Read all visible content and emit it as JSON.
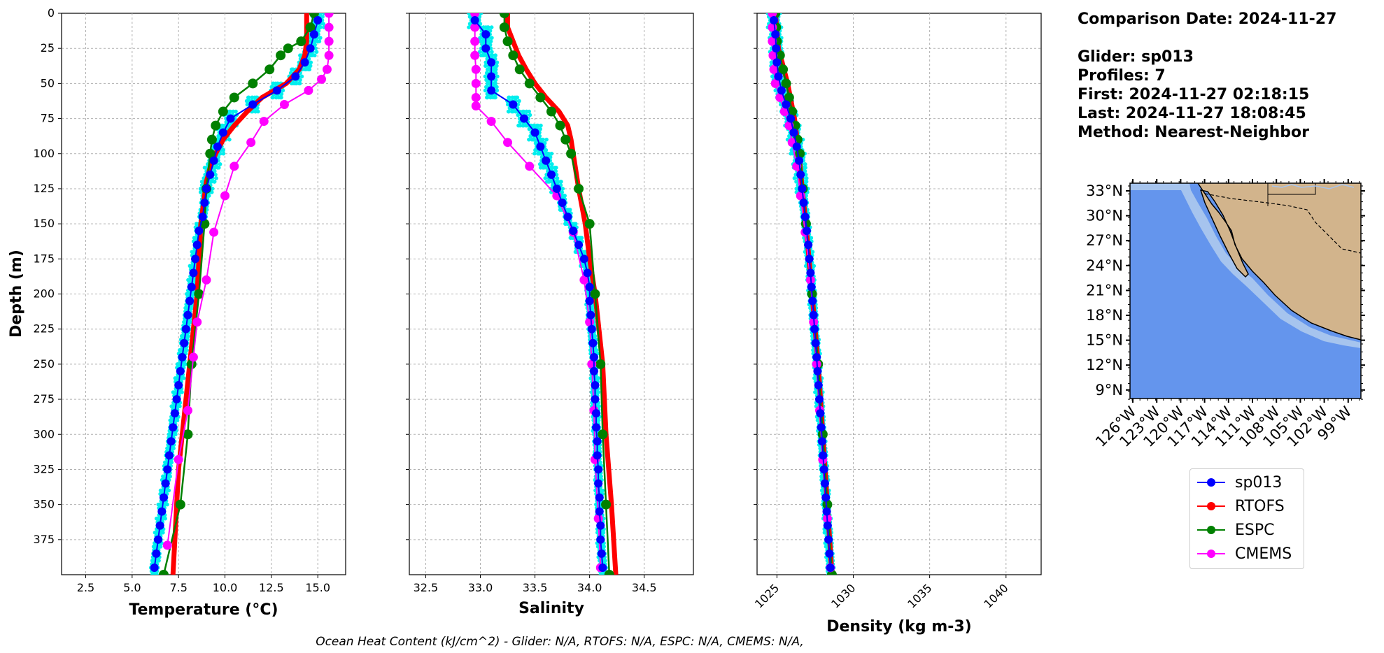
{
  "info": {
    "comparison_date": "Comparison Date: 2024-11-27",
    "glider": "Glider: sp013",
    "profiles": "Profiles: 7",
    "first": "First: 2024-11-27 02:18:15",
    "last": "Last: 2024-11-27 18:08:45",
    "method": "Method: Nearest-Neighbor"
  },
  "footer": "Ocean Heat Content (kJ/cm^2) - Glider: N/A,  RTOFS: N/A,  ESPC: N/A,  CMEMS: N/A,",
  "colors": {
    "sp013": "#0000ff",
    "RTOFS": "#ff0000",
    "ESPC": "#008000",
    "CMEMS": "#ff00ff",
    "raw": "#00eeee",
    "land": "#d2b48c",
    "ocean": "#6495ed",
    "shelf": "#a6c4ee"
  },
  "legend": [
    {
      "label": "sp013",
      "color": "#0000ff"
    },
    {
      "label": "RTOFS",
      "color": "#ff0000"
    },
    {
      "label": "ESPC",
      "color": "#008000"
    },
    {
      "label": "CMEMS",
      "color": "#ff00ff"
    }
  ],
  "chart_data": [
    {
      "type": "line",
      "xlabel": "Temperature (°C)",
      "ylabel": "Depth (m)",
      "xlim": [
        1.2,
        16.5
      ],
      "ylim": [
        400,
        0
      ],
      "xticks": [
        "2.5",
        "5.0",
        "7.5",
        "10.0",
        "12.5",
        "15.0"
      ],
      "yticks": [
        "0",
        "25",
        "50",
        "75",
        "100",
        "125",
        "150",
        "175",
        "200",
        "225",
        "250",
        "275",
        "300",
        "325",
        "350",
        "375"
      ],
      "grid": true,
      "series": [
        {
          "name": "sp013",
          "depth": [
            5,
            15,
            25,
            35,
            45,
            55,
            65,
            75,
            85,
            95,
            105,
            115,
            125,
            135,
            145,
            155,
            165,
            175,
            185,
            195,
            205,
            215,
            225,
            235,
            245,
            255,
            265,
            275,
            285,
            295,
            305,
            315,
            325,
            335,
            345,
            355,
            365,
            375,
            385,
            395
          ],
          "values": [
            15.0,
            14.8,
            14.6,
            14.3,
            13.8,
            12.8,
            11.5,
            10.3,
            9.9,
            9.6,
            9.4,
            9.2,
            9.0,
            8.9,
            8.8,
            8.6,
            8.5,
            8.4,
            8.3,
            8.2,
            8.1,
            8.0,
            7.9,
            7.8,
            7.7,
            7.6,
            7.5,
            7.4,
            7.3,
            7.2,
            7.1,
            7.0,
            6.9,
            6.8,
            6.7,
            6.6,
            6.5,
            6.4,
            6.3,
            6.2
          ]
        },
        {
          "name": "RTOFS",
          "depth": [
            0,
            10,
            20,
            30,
            40,
            50,
            60,
            70,
            80,
            90,
            100,
            110,
            120,
            130,
            140,
            150,
            175,
            200,
            225,
            250,
            275,
            300,
            325,
            350,
            375,
            400
          ],
          "values": [
            14.4,
            14.4,
            14.4,
            14.3,
            14.0,
            13.3,
            12.0,
            11.2,
            10.5,
            9.9,
            9.5,
            9.2,
            9.0,
            8.9,
            8.8,
            8.7,
            8.6,
            8.5,
            8.3,
            8.1,
            7.9,
            7.7,
            7.5,
            7.4,
            7.3,
            7.2
          ]
        },
        {
          "name": "ESPC",
          "depth": [
            0,
            10,
            20,
            25,
            30,
            40,
            50,
            60,
            70,
            80,
            90,
            100,
            125,
            150,
            200,
            250,
            300,
            350,
            400
          ],
          "values": [
            14.8,
            14.6,
            14.1,
            13.4,
            13.0,
            12.4,
            11.5,
            10.5,
            9.9,
            9.5,
            9.3,
            9.2,
            9.0,
            8.9,
            8.6,
            8.2,
            8.0,
            7.6,
            6.7
          ]
        },
        {
          "name": "CMEMS",
          "depth": [
            0,
            10,
            20,
            30,
            40,
            47,
            55,
            65,
            77,
            92,
            109,
            130,
            156,
            190,
            220,
            245,
            283,
            318,
            379
          ],
          "values": [
            15.6,
            15.6,
            15.6,
            15.6,
            15.5,
            15.2,
            14.5,
            13.2,
            12.1,
            11.4,
            10.5,
            10.0,
            9.4,
            9.0,
            8.5,
            8.3,
            8.0,
            7.5,
            6.9
          ]
        }
      ]
    },
    {
      "type": "line",
      "xlabel": "Salinity",
      "xlim": [
        32.35,
        34.95
      ],
      "ylim": [
        400,
        0
      ],
      "xticks": [
        "32.5",
        "33.0",
        "33.5",
        "34.0",
        "34.5"
      ],
      "grid": true,
      "series": [
        {
          "name": "sp013",
          "depth": [
            5,
            15,
            25,
            35,
            45,
            55,
            65,
            75,
            85,
            95,
            105,
            115,
            125,
            135,
            145,
            155,
            165,
            175,
            185,
            195,
            205,
            215,
            225,
            235,
            245,
            255,
            265,
            275,
            285,
            295,
            305,
            315,
            325,
            335,
            345,
            355,
            365,
            375,
            385,
            395
          ],
          "values": [
            32.95,
            33.05,
            33.05,
            33.1,
            33.1,
            33.1,
            33.3,
            33.4,
            33.5,
            33.55,
            33.6,
            33.65,
            33.7,
            33.75,
            33.8,
            33.85,
            33.9,
            33.95,
            33.98,
            34.0,
            34.0,
            34.01,
            34.02,
            34.03,
            34.04,
            34.04,
            34.05,
            34.05,
            34.06,
            34.06,
            34.07,
            34.07,
            34.08,
            34.08,
            34.09,
            34.09,
            34.1,
            34.1,
            34.11,
            34.12
          ]
        },
        {
          "name": "RTOFS",
          "depth": [
            0,
            10,
            20,
            30,
            40,
            50,
            60,
            70,
            80,
            90,
            100,
            125,
            150,
            175,
            200,
            250,
            300,
            350,
            400
          ],
          "values": [
            33.25,
            33.25,
            33.3,
            33.35,
            33.42,
            33.5,
            33.6,
            33.72,
            33.8,
            33.83,
            33.85,
            33.9,
            33.96,
            34.0,
            34.05,
            34.12,
            34.15,
            34.2,
            34.24
          ]
        },
        {
          "name": "ESPC",
          "depth": [
            0,
            10,
            20,
            30,
            40,
            50,
            60,
            70,
            80,
            90,
            100,
            125,
            150,
            200,
            250,
            300,
            350,
            400
          ],
          "values": [
            33.22,
            33.22,
            33.25,
            33.3,
            33.36,
            33.45,
            33.55,
            33.65,
            33.73,
            33.78,
            33.83,
            33.9,
            34.0,
            34.05,
            34.1,
            34.12,
            34.15,
            34.18
          ]
        },
        {
          "name": "CMEMS",
          "depth": [
            0,
            10,
            20,
            30,
            40,
            50,
            60,
            66,
            77,
            92,
            109,
            130,
            156,
            190,
            220,
            250,
            283,
            318,
            360,
            395
          ],
          "values": [
            32.95,
            32.95,
            32.95,
            32.95,
            32.96,
            32.96,
            32.96,
            32.96,
            33.1,
            33.25,
            33.45,
            33.7,
            33.85,
            33.95,
            34.0,
            34.02,
            34.04,
            34.05,
            34.08,
            34.1
          ]
        }
      ]
    },
    {
      "type": "line",
      "xlabel": "Density (kg m-3)",
      "xlim": [
        1023.7,
        1042.3
      ],
      "ylim": [
        400,
        0
      ],
      "xticks": [
        "1025",
        "1030",
        "1035",
        "1040"
      ],
      "grid": true,
      "series": [
        {
          "name": "sp013",
          "depth": [
            5,
            15,
            25,
            35,
            45,
            55,
            65,
            75,
            85,
            95,
            105,
            115,
            125,
            135,
            145,
            155,
            165,
            175,
            185,
            195,
            205,
            215,
            225,
            235,
            245,
            255,
            265,
            275,
            285,
            295,
            305,
            315,
            325,
            335,
            345,
            355,
            365,
            375,
            385,
            395
          ],
          "values": [
            1024.8,
            1024.9,
            1024.95,
            1025.0,
            1025.1,
            1025.3,
            1025.6,
            1025.9,
            1026.1,
            1026.3,
            1026.45,
            1026.55,
            1026.65,
            1026.75,
            1026.85,
            1026.95,
            1027.05,
            1027.12,
            1027.2,
            1027.26,
            1027.33,
            1027.4,
            1027.46,
            1027.53,
            1027.6,
            1027.66,
            1027.72,
            1027.78,
            1027.84,
            1027.9,
            1027.96,
            1028.02,
            1028.08,
            1028.14,
            1028.2,
            1028.26,
            1028.32,
            1028.38,
            1028.44,
            1028.5
          ]
        },
        {
          "name": "RTOFS",
          "depth": [
            0,
            25,
            50,
            75,
            100,
            125,
            150,
            200,
            250,
            300,
            350,
            400
          ],
          "values": [
            1024.9,
            1025.1,
            1025.7,
            1026.15,
            1026.45,
            1026.65,
            1026.9,
            1027.3,
            1027.7,
            1028.0,
            1028.3,
            1028.6
          ]
        },
        {
          "name": "ESPC",
          "depth": [
            0,
            10,
            20,
            30,
            40,
            50,
            60,
            70,
            80,
            90,
            100,
            125,
            150,
            200,
            250,
            300,
            350,
            400
          ],
          "values": [
            1024.9,
            1024.95,
            1025.0,
            1025.2,
            1025.4,
            1025.6,
            1025.8,
            1026.0,
            1026.2,
            1026.35,
            1026.5,
            1026.7,
            1026.9,
            1027.3,
            1027.7,
            1028.0,
            1028.3,
            1028.6
          ]
        },
        {
          "name": "CMEMS",
          "depth": [
            0,
            10,
            20,
            30,
            40,
            50,
            60,
            70,
            80,
            92,
            109,
            130,
            156,
            190,
            220,
            250,
            283,
            318,
            360,
            395
          ],
          "values": [
            1024.7,
            1024.7,
            1024.7,
            1024.75,
            1024.8,
            1024.9,
            1025.2,
            1025.5,
            1025.8,
            1026.0,
            1026.3,
            1026.55,
            1026.85,
            1027.2,
            1027.4,
            1027.6,
            1027.8,
            1028.0,
            1028.3,
            1028.5
          ]
        }
      ]
    }
  ],
  "map": {
    "lat_ticks": [
      "33°N",
      "30°N",
      "27°N",
      "24°N",
      "21°N",
      "18°N",
      "15°N",
      "12°N",
      "9°N"
    ],
    "lon_ticks": [
      "126°W",
      "123°W",
      "120°W",
      "117°W",
      "114°W",
      "111°W",
      "108°W",
      "105°W",
      "102°W",
      "99°W"
    ]
  }
}
